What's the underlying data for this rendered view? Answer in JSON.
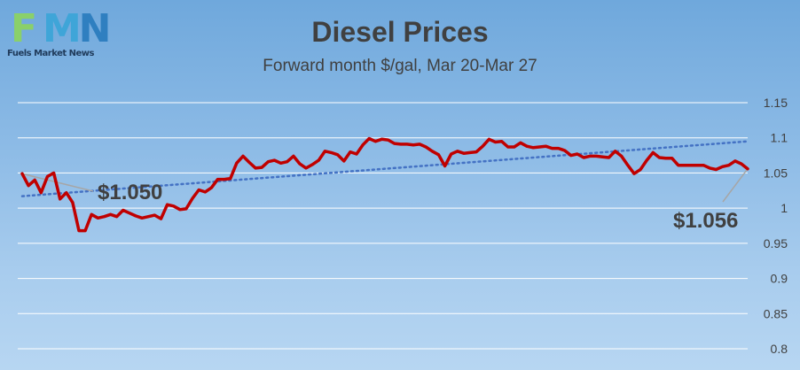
{
  "logo": {
    "letters": [
      "F",
      "M",
      "N"
    ],
    "tagline": "Fuels Market News",
    "colors": [
      "#8ad06a",
      "#3fa5d8",
      "#2f7fc0"
    ]
  },
  "colors": {
    "price_line": "#c00000",
    "trend_line": "#4472c4",
    "gridline": "#ffffff",
    "text": "#404040"
  },
  "chart_data": {
    "type": "line",
    "title": "Diesel Prices",
    "subtitle": "Forward month $/gal, Mar 20-Mar 27",
    "xlabel": "",
    "ylabel": "",
    "ylim": [
      0.8,
      1.15
    ],
    "yticks": [
      1.15,
      1.1,
      1.05,
      1,
      0.95,
      0.9,
      0.85,
      0.8
    ],
    "ytick_labels": [
      "1.15",
      "1.1",
      "1.05",
      "1",
      "0.95",
      "0.9",
      "0.85",
      "0.8"
    ],
    "grid": true,
    "series": [
      {
        "style": "solid",
        "values": [
          1.049,
          1.032,
          1.04,
          1.022,
          1.045,
          1.05,
          1.013,
          1.022,
          1.008,
          0.968,
          0.968,
          0.991,
          0.986,
          0.988,
          0.991,
          0.988,
          0.997,
          0.993,
          0.989,
          0.986,
          0.988,
          0.99,
          0.985,
          1.005,
          1.003,
          0.998,
          0.999,
          1.014,
          1.026,
          1.023,
          1.029,
          1.041,
          1.041,
          1.042,
          1.064,
          1.074,
          1.065,
          1.057,
          1.058,
          1.066,
          1.068,
          1.064,
          1.066,
          1.074,
          1.063,
          1.057,
          1.062,
          1.068,
          1.081,
          1.079,
          1.076,
          1.067,
          1.08,
          1.077,
          1.09,
          1.099,
          1.095,
          1.098,
          1.097,
          1.092,
          1.091,
          1.091,
          1.09,
          1.091,
          1.087,
          1.081,
          1.076,
          1.06,
          1.077,
          1.081,
          1.078,
          1.079,
          1.08,
          1.088,
          1.098,
          1.094,
          1.095,
          1.087,
          1.087,
          1.093,
          1.088,
          1.086,
          1.087,
          1.088,
          1.085,
          1.085,
          1.082,
          1.075,
          1.077,
          1.072,
          1.074,
          1.074,
          1.073,
          1.072,
          1.081,
          1.074,
          1.061,
          1.049,
          1.055,
          1.068,
          1.079,
          1.072,
          1.071,
          1.071,
          1.061,
          1.061,
          1.061,
          1.061,
          1.061,
          1.057,
          1.055,
          1.059,
          1.061,
          1.067,
          1.063,
          1.056
        ]
      },
      {
        "style": "dotted",
        "trendline": true,
        "values": [
          1.017,
          1.095
        ]
      }
    ],
    "annotations": [
      {
        "text": "$1.050",
        "point_index": 0,
        "value": 1.05
      },
      {
        "text": "$1.056",
        "point_index": 115,
        "value": 1.056
      }
    ]
  }
}
